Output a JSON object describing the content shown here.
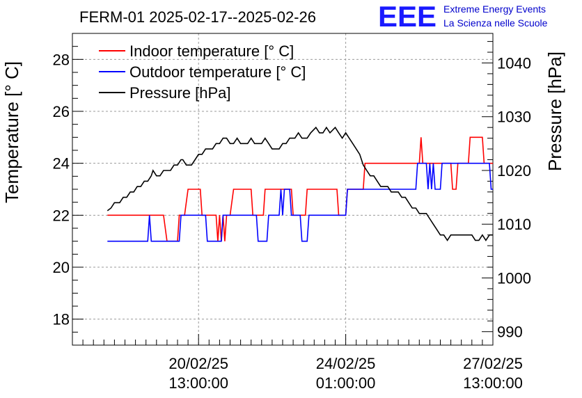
{
  "chart_data": {
    "type": "line",
    "title": "FERM-01 2025-02-17--2025-02-26",
    "ylabel": "Temperature [° C]",
    "y2label": "Pressure [hPa]",
    "ylim": [
      17,
      29
    ],
    "y2lim": [
      987.5,
      1045.5
    ],
    "yticks": [
      "18",
      "20",
      "22",
      "24",
      "26",
      "28"
    ],
    "y2ticks": [
      "990",
      "1000",
      "1010",
      "1020",
      "1030",
      "1040"
    ],
    "xticks": [
      {
        "date": "20/02/25",
        "time": "13:00:00",
        "t": 72
      },
      {
        "date": "24/02/25",
        "time": "01:00:00",
        "t": 156
      },
      {
        "date": "27/02/25",
        "time": "13:00:00",
        "t": 240
      }
    ],
    "xlim": [
      0,
      240
    ],
    "grid": true,
    "legend_position": "top-left",
    "logo": {
      "text": "EEE",
      "line1": "Extreme Energy Events",
      "line2": "La Scienza nelle Scuole"
    },
    "colors": {
      "indoor": "#ff0000",
      "outdoor": "#0000ff",
      "pressure": "#000000"
    },
    "series": [
      {
        "name": "Indoor temperature [° C]",
        "axis": "left",
        "color": "#ff0000",
        "points": [
          [
            20,
            22
          ],
          [
            52,
            22
          ],
          [
            54,
            21
          ],
          [
            60,
            21
          ],
          [
            61,
            22
          ],
          [
            64,
            22
          ],
          [
            66,
            23
          ],
          [
            73,
            23
          ],
          [
            74,
            22
          ],
          [
            82,
            22
          ],
          [
            83,
            21
          ],
          [
            84,
            22
          ],
          [
            85,
            21
          ],
          [
            86,
            22
          ],
          [
            87,
            21
          ],
          [
            88,
            22
          ],
          [
            90,
            22
          ],
          [
            92,
            23
          ],
          [
            102,
            23
          ],
          [
            103,
            22
          ],
          [
            109,
            22
          ],
          [
            110,
            23
          ],
          [
            125,
            23
          ],
          [
            126,
            22
          ],
          [
            133,
            22
          ],
          [
            134,
            23
          ],
          [
            151,
            23
          ],
          [
            152,
            22
          ],
          [
            156,
            22
          ],
          [
            157,
            23
          ],
          [
            166,
            23
          ],
          [
            167,
            24
          ],
          [
            198,
            24
          ],
          [
            199,
            25
          ],
          [
            200,
            24
          ],
          [
            216,
            24
          ],
          [
            217,
            23
          ],
          [
            219,
            23
          ],
          [
            220,
            24
          ],
          [
            226,
            24
          ],
          [
            227,
            25
          ],
          [
            234,
            25
          ],
          [
            235,
            24
          ],
          [
            240,
            24
          ]
        ]
      },
      {
        "name": "Outdoor temperature [° C]",
        "axis": "left",
        "color": "#0000ff",
        "points": [
          [
            20,
            21
          ],
          [
            43,
            21
          ],
          [
            44,
            22
          ],
          [
            45,
            21
          ],
          [
            61,
            21
          ],
          [
            62,
            22
          ],
          [
            76,
            22
          ],
          [
            77,
            21
          ],
          [
            85,
            21
          ],
          [
            86,
            22
          ],
          [
            105,
            22
          ],
          [
            106,
            21
          ],
          [
            111,
            21
          ],
          [
            112,
            22
          ],
          [
            118,
            22
          ],
          [
            119,
            23
          ],
          [
            120,
            22
          ],
          [
            121,
            23
          ],
          [
            124,
            23
          ],
          [
            125,
            22
          ],
          [
            130,
            22
          ],
          [
            131,
            21
          ],
          [
            134,
            21
          ],
          [
            135,
            22
          ],
          [
            156,
            22
          ],
          [
            157,
            23
          ],
          [
            196,
            23
          ],
          [
            197,
            24
          ],
          [
            202,
            24
          ],
          [
            203,
            23
          ],
          [
            204,
            24
          ],
          [
            205,
            23
          ],
          [
            206,
            24
          ],
          [
            207,
            23
          ],
          [
            210,
            23
          ],
          [
            211,
            24
          ],
          [
            238,
            24
          ],
          [
            239,
            23
          ],
          [
            240,
            23
          ]
        ]
      },
      {
        "name": "Pressure [hPa]",
        "axis": "right",
        "color": "#000000",
        "points": [
          [
            20,
            1012.5
          ],
          [
            22,
            1013
          ],
          [
            24,
            1014
          ],
          [
            27,
            1014
          ],
          [
            29,
            1015
          ],
          [
            31,
            1015
          ],
          [
            33,
            1016
          ],
          [
            35,
            1016
          ],
          [
            37,
            1017
          ],
          [
            39,
            1017
          ],
          [
            41,
            1018
          ],
          [
            43,
            1018
          ],
          [
            45,
            1019
          ],
          [
            46,
            1020
          ],
          [
            48,
            1019
          ],
          [
            50,
            1019
          ],
          [
            52,
            1020
          ],
          [
            54,
            1020
          ],
          [
            56,
            1020
          ],
          [
            58,
            1021
          ],
          [
            60,
            1021
          ],
          [
            62,
            1022
          ],
          [
            63,
            1022
          ],
          [
            65,
            1021
          ],
          [
            68,
            1021
          ],
          [
            70,
            1022
          ],
          [
            72,
            1023
          ],
          [
            74,
            1023
          ],
          [
            76,
            1024
          ],
          [
            80,
            1024
          ],
          [
            82,
            1025
          ],
          [
            84,
            1025
          ],
          [
            86,
            1026
          ],
          [
            88,
            1026
          ],
          [
            90,
            1025
          ],
          [
            92,
            1025
          ],
          [
            94,
            1026
          ],
          [
            96,
            1025
          ],
          [
            98,
            1025
          ],
          [
            100,
            1025
          ],
          [
            102,
            1026
          ],
          [
            104,
            1025
          ],
          [
            108,
            1025
          ],
          [
            110,
            1026
          ],
          [
            112,
            1025
          ],
          [
            114,
            1024
          ],
          [
            118,
            1024
          ],
          [
            120,
            1025
          ],
          [
            122,
            1025
          ],
          [
            124,
            1026
          ],
          [
            127,
            1026
          ],
          [
            129,
            1027
          ],
          [
            131,
            1026
          ],
          [
            134,
            1026
          ],
          [
            136,
            1027
          ],
          [
            139,
            1028
          ],
          [
            141,
            1027
          ],
          [
            143,
            1027
          ],
          [
            145,
            1028
          ],
          [
            147,
            1027
          ],
          [
            150,
            1028
          ],
          [
            152,
            1027
          ],
          [
            154,
            1026
          ],
          [
            156,
            1027
          ],
          [
            158,
            1026
          ],
          [
            160,
            1025
          ],
          [
            162,
            1024
          ],
          [
            164,
            1023
          ],
          [
            166,
            1021
          ],
          [
            168,
            1020
          ],
          [
            170,
            1019
          ],
          [
            172,
            1019
          ],
          [
            174,
            1018
          ],
          [
            176,
            1017
          ],
          [
            180,
            1017
          ],
          [
            182,
            1016
          ],
          [
            186,
            1016
          ],
          [
            188,
            1015
          ],
          [
            190,
            1015
          ],
          [
            192,
            1014
          ],
          [
            194,
            1013
          ],
          [
            196,
            1013
          ],
          [
            198,
            1012
          ],
          [
            202,
            1012
          ],
          [
            204,
            1011
          ],
          [
            206,
            1010
          ],
          [
            208,
            1009
          ],
          [
            210,
            1008
          ],
          [
            212,
            1008
          ],
          [
            214,
            1007
          ],
          [
            216,
            1008
          ],
          [
            218,
            1008
          ],
          [
            220,
            1008
          ],
          [
            222,
            1008
          ],
          [
            224,
            1008
          ],
          [
            226,
            1008
          ],
          [
            228,
            1008
          ],
          [
            230,
            1007
          ],
          [
            232,
            1007
          ],
          [
            234,
            1008
          ],
          [
            236,
            1007
          ],
          [
            238,
            1008
          ],
          [
            240,
            1008
          ]
        ]
      }
    ]
  }
}
